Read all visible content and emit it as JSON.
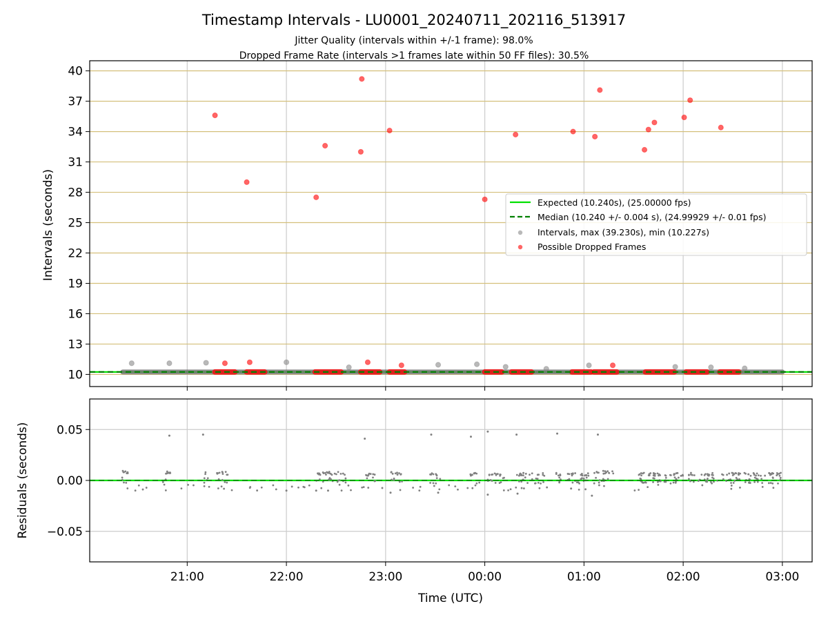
{
  "title": "Timestamp Intervals - LU0001_20240711_202116_513917",
  "subtitle1": "Jitter Quality (intervals within +/-1 frame): 98.0%",
  "subtitle2": "Dropped Frame Rate (intervals >1 frames late within 50 FF files): 30.5%",
  "colors": {
    "expected": "#00e000",
    "median": "#008000",
    "gray_points": "#808080",
    "red_points": "#ff0000",
    "h_grid": "#d4bf7a",
    "grid": "#cccccc"
  },
  "chart_data": [
    {
      "type": "scatter",
      "panel": "top",
      "ylabel": "Intervals (seconds)",
      "xlabel": "",
      "x_unit": "UTC time (hours, day-relative; values >24 are next day)",
      "xlim": [
        20.017,
        27.3
      ],
      "ylim": [
        8.8,
        41.0
      ],
      "yticks": [
        "10",
        "13",
        "16",
        "19",
        "22",
        "25",
        "28",
        "31",
        "34",
        "37",
        "40"
      ],
      "xticks": [
        "21:00",
        "22:00",
        "23:00",
        "00:00",
        "01:00",
        "02:00",
        "03:00"
      ],
      "grid_x": true,
      "grid_y": true,
      "legend": {
        "placement": "right",
        "entries": [
          "Expected (10.240s), (25.00000 fps)",
          "Median (10.240 +/- 0.004 s), (24.99929 +/- 0.01 fps)",
          "Intervals, max (39.230s), min (10.227s)",
          "Possible Dropped Frames"
        ]
      },
      "series": [
        {
          "name": "Expected (10.240s), (25.00000 fps)",
          "kind": "hline",
          "y": 10.24
        },
        {
          "name": "Median (10.240 +/- 0.004 s), (24.99929 +/- 0.01 fps)",
          "kind": "hline-dashed",
          "y": 10.24
        },
        {
          "name": "Intervals, max (39.230s), min (10.227s)",
          "kind": "scatter",
          "band": [
            [
              20.35,
              27.0,
              10.24
            ]
          ],
          "points": [
            [
              20.44,
              11.1
            ],
            [
              20.82,
              11.1
            ],
            [
              21.19,
              11.15
            ],
            [
              22.0,
              11.2
            ],
            [
              22.63,
              10.7
            ],
            [
              23.53,
              10.95
            ],
            [
              23.92,
              11.0
            ],
            [
              24.21,
              10.75
            ],
            [
              24.62,
              10.55
            ],
            [
              25.05,
              10.9
            ],
            [
              25.92,
              10.75
            ],
            [
              26.28,
              10.7
            ],
            [
              26.62,
              10.6
            ]
          ]
        },
        {
          "name": "Possible Dropped Frames",
          "kind": "scatter",
          "segments": [
            [
              21.28,
              21.48
            ],
            [
              21.6,
              21.78
            ],
            [
              22.29,
              22.55
            ],
            [
              22.75,
              22.94
            ],
            [
              23.04,
              23.19
            ],
            [
              24.0,
              24.17
            ],
            [
              24.27,
              24.47
            ],
            [
              24.88,
              25.07
            ],
            [
              25.1,
              25.33
            ],
            [
              25.62,
              25.91
            ],
            [
              26.03,
              26.24
            ],
            [
              26.37,
              26.56
            ]
          ],
          "points": [
            [
              21.28,
              35.6
            ],
            [
              21.6,
              29.0
            ],
            [
              22.3,
              27.5
            ],
            [
              22.39,
              32.6
            ],
            [
              22.75,
              32.0
            ],
            [
              22.76,
              39.2
            ],
            [
              22.82,
              11.2
            ],
            [
              23.04,
              34.1
            ],
            [
              23.16,
              10.9
            ],
            [
              24.0,
              27.3
            ],
            [
              24.31,
              33.7
            ],
            [
              24.89,
              34.0
            ],
            [
              25.11,
              33.5
            ],
            [
              25.16,
              38.1
            ],
            [
              25.29,
              10.9
            ],
            [
              25.61,
              32.2
            ],
            [
              25.65,
              34.2
            ],
            [
              25.71,
              34.9
            ],
            [
              26.01,
              35.4
            ],
            [
              26.07,
              37.1
            ],
            [
              26.38,
              34.4
            ],
            [
              21.38,
              11.1
            ],
            [
              21.63,
              11.2
            ]
          ]
        }
      ]
    },
    {
      "type": "scatter",
      "panel": "bottom",
      "ylabel": "Residuals (seconds)",
      "xlabel": "Time (UTC)",
      "x_unit": "UTC time (hours, day-relative; values >24 are next day)",
      "xlim": [
        20.017,
        27.3
      ],
      "ylim": [
        -0.08,
        0.08
      ],
      "yticks": [
        "−0.05",
        "0.00",
        "0.05"
      ],
      "xticks": [
        "21:00",
        "22:00",
        "23:00",
        "00:00",
        "01:00",
        "02:00",
        "03:00"
      ],
      "grid_x": true,
      "grid_y": true,
      "series": [
        {
          "name": "",
          "kind": "hline",
          "y": 0.0
        },
        {
          "name": "",
          "kind": "scatter",
          "outliers": [
            [
              20.82,
              0.044
            ],
            [
              21.16,
              0.045
            ],
            [
              22.79,
              0.041
            ],
            [
              23.46,
              0.045
            ],
            [
              23.86,
              0.043
            ],
            [
              24.03,
              0.048
            ],
            [
              24.32,
              0.045
            ],
            [
              24.73,
              0.046
            ],
            [
              25.14,
              0.045
            ],
            [
              22.0,
              -0.01
            ],
            [
              22.3,
              -0.01
            ],
            [
              22.42,
              -0.01
            ],
            [
              23.05,
              -0.012
            ],
            [
              23.53,
              -0.012
            ],
            [
              24.03,
              -0.014
            ],
            [
              24.33,
              -0.013
            ],
            [
              24.87,
              -0.008
            ],
            [
              25.08,
              -0.015
            ]
          ],
          "clusters": [
            [
              20.34,
              20.43,
              0.008
            ],
            [
              20.75,
              20.83,
              0.008
            ],
            [
              21.16,
              21.21,
              0.007
            ],
            [
              21.3,
              21.42,
              0.007
            ],
            [
              22.3,
              22.6,
              0.007
            ],
            [
              22.8,
              22.9,
              0.006
            ],
            [
              23.04,
              23.17,
              0.007
            ],
            [
              23.45,
              23.55,
              0.006
            ],
            [
              23.85,
              23.95,
              0.006
            ],
            [
              24.03,
              24.2,
              0.006
            ],
            [
              24.32,
              24.6,
              0.006
            ],
            [
              24.72,
              25.05,
              0.006
            ],
            [
              25.1,
              25.3,
              0.008
            ],
            [
              25.55,
              27.0,
              0.006
            ]
          ]
        }
      ]
    }
  ]
}
